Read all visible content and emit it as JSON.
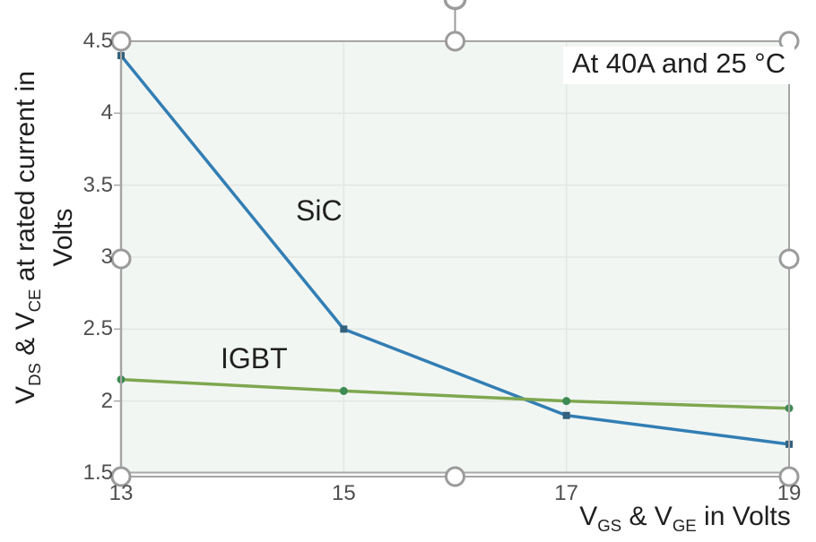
{
  "figure": {
    "annotation": "At 40A and 25 °C",
    "plot_bg": "#F2F6F3",
    "selection": {
      "border_color": "#A5A5A5",
      "handle_fill": "#FFFFFF",
      "handle_stroke": "#9B9B9B",
      "handles": [
        "top-left",
        "top-center",
        "top-right",
        "middle-left",
        "middle-right",
        "bottom-left",
        "bottom-center",
        "bottom-right"
      ],
      "rotate_handle": "partially visible at top center"
    }
  },
  "y_axis": {
    "title_parts": {
      "p1": "V",
      "s1": "DS",
      "p2": " & V",
      "s2": "CE",
      "p3": " at rated current in",
      "line2": "Volts"
    }
  },
  "x_axis": {
    "title_parts": {
      "p1": "V",
      "s1": "GS",
      "p2": " & V",
      "s2": "GE",
      "p3": " in Volts"
    }
  },
  "chart_data": {
    "type": "line",
    "x": [
      13,
      15,
      17,
      19
    ],
    "series": [
      {
        "name": "SiC",
        "values": [
          4.4,
          2.5,
          1.9,
          1.7
        ],
        "color": "#327EB4",
        "marker": "square",
        "marker_color": "#33617E"
      },
      {
        "name": "IGBT",
        "values": [
          2.15,
          2.07,
          2.0,
          1.95
        ],
        "color": "#7EA74F",
        "marker": "circle",
        "marker_color": "#3E8A54"
      }
    ],
    "title": "",
    "xlabel": "V_GS & V_GE in Volts",
    "ylabel": "V_DS & V_CE at rated current in Volts",
    "annotation": "At 40A and 25 °C",
    "xlim": [
      13,
      19
    ],
    "ylim": [
      1.5,
      4.5
    ],
    "xticks": [
      13,
      15,
      17,
      19
    ],
    "yticks": [
      4.5,
      4,
      3.5,
      3,
      2.5,
      2,
      1.5
    ],
    "xtick_labels": [
      "13",
      "15",
      "17",
      "19"
    ],
    "ytick_labels": [
      "4.5",
      "4",
      "3.5",
      "3",
      "2.5",
      "2",
      "1.5"
    ],
    "grid": "on",
    "legend": "inline-labels",
    "grid_color": "#E3E7E3",
    "axis_color": "#A9A9A9",
    "tick_text_color": "#4F4F4F",
    "label_text_color": "#1F1F1F"
  }
}
